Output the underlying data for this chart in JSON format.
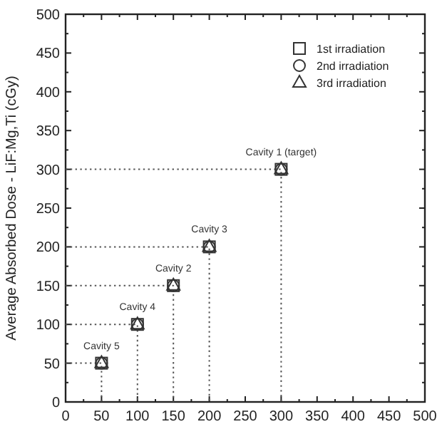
{
  "chart_data": {
    "type": "scatter",
    "ylabel": "Average Absorbed Dose - LiF:Mg,Ti (cGy)",
    "xlim": [
      0,
      500
    ],
    "xticks": [
      0,
      50,
      100,
      150,
      200,
      250,
      300,
      350,
      400,
      450,
      500
    ],
    "ylim": [
      0,
      500
    ],
    "yticks": [
      0,
      50,
      100,
      150,
      200,
      250,
      300,
      350,
      400,
      450,
      500
    ],
    "grid": false,
    "legend": "top right",
    "series": [
      {
        "name": "1st irradiation",
        "color": "#333333",
        "marker": "square",
        "x": [
          50,
          100,
          150,
          200,
          300
        ],
        "values": [
          50,
          100,
          150,
          200,
          300
        ]
      },
      {
        "name": "2nd irradiation",
        "color": "#333333",
        "marker": "circle",
        "x": [
          50,
          100,
          150,
          200,
          300
        ],
        "values": [
          50,
          100,
          150,
          200,
          300
        ]
      },
      {
        "name": "3rd irradiation",
        "color": "#333333",
        "marker": "triangle",
        "x": [
          50,
          100,
          150,
          200,
          300
        ],
        "values": [
          50,
          100,
          150,
          200,
          300
        ]
      },
      {
        "type": "line",
        "color": "#555555",
        "line_style": "dotted",
        "marker": "none",
        "x": [
          0,
          50,
          50
        ],
        "values": [
          50,
          50,
          0
        ]
      },
      {
        "type": "line",
        "color": "#555555",
        "line_style": "dotted",
        "marker": "none",
        "x": [
          0,
          100,
          100
        ],
        "values": [
          100,
          100,
          0
        ]
      },
      {
        "type": "line",
        "color": "#555555",
        "line_style": "dotted",
        "marker": "none",
        "x": [
          0,
          150,
          150
        ],
        "values": [
          150,
          150,
          0
        ]
      },
      {
        "type": "line",
        "color": "#555555",
        "line_style": "dotted",
        "marker": "none",
        "x": [
          0,
          200,
          200
        ],
        "values": [
          200,
          200,
          0
        ]
      },
      {
        "type": "line",
        "color": "#555555",
        "line_style": "dotted",
        "marker": "none",
        "x": [
          0,
          300,
          300
        ],
        "values": [
          300,
          300,
          0
        ]
      }
    ],
    "annotations": [
      {
        "text": "Cavity 1 (target)",
        "x": 300,
        "y": 300
      },
      {
        "text": "Cavity 3",
        "x": 200,
        "y": 200
      },
      {
        "text": "Cavity 2",
        "x": 150,
        "y": 150
      },
      {
        "text": "Cavity 4",
        "x": 100,
        "y": 100
      },
      {
        "text": "Cavity 5",
        "x": 50,
        "y": 50
      }
    ]
  }
}
